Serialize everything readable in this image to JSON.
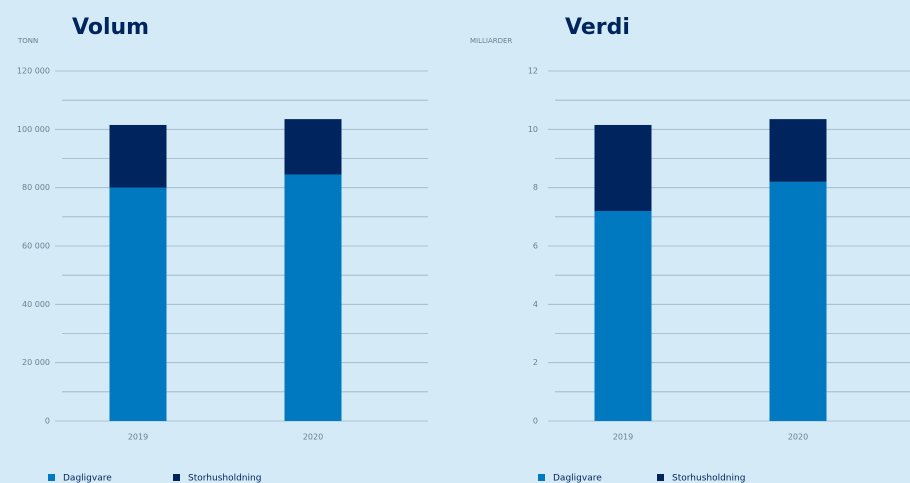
{
  "chart_data": [
    {
      "type": "bar",
      "stacked": true,
      "title": "Volum",
      "ylabel": "TONN",
      "categories": [
        "2019",
        "2020"
      ],
      "series": [
        {
          "name": "Dagligvare",
          "color": "#0079c1",
          "values": [
            80000,
            84500
          ]
        },
        {
          "name": "Storhusholdning",
          "color": "#00245d",
          "values": [
            21500,
            19000
          ]
        }
      ],
      "ylim": [
        0,
        120000
      ],
      "yticks": [
        0,
        {
          "value": 20000,
          "label": "20 000"
        },
        {
          "value": 40000,
          "label": "40 000"
        },
        {
          "value": 60000,
          "label": "60 000"
        },
        {
          "value": 80000,
          "label": "80 000"
        },
        {
          "value": 100000,
          "label": "100 000"
        },
        {
          "value": 120000,
          "label": "120 000"
        }
      ],
      "grid": true,
      "legend": "bottom-left"
    },
    {
      "type": "bar",
      "stacked": true,
      "title": "Verdi",
      "ylabel": "MILLIARDER",
      "categories": [
        "2019",
        "2020"
      ],
      "series": [
        {
          "name": "Dagligvare",
          "color": "#0079c1",
          "values": [
            7.2,
            8.2
          ]
        },
        {
          "name": "Storhusholdning",
          "color": "#00245d",
          "values": [
            2.95,
            2.15
          ]
        }
      ],
      "ylim": [
        0,
        12
      ],
      "yticks": [
        0,
        2,
        4,
        6,
        8,
        10,
        12
      ],
      "grid": true,
      "legend": "bottom-left"
    }
  ]
}
